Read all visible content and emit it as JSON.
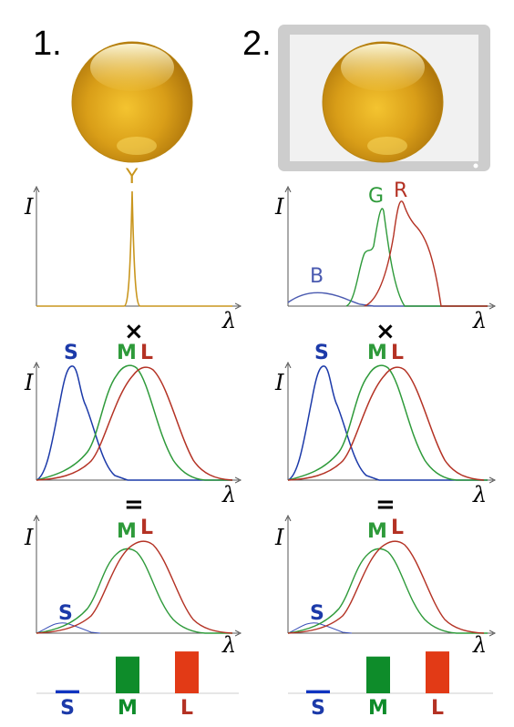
{
  "panels": [
    {
      "number": "1.",
      "source": "Y",
      "mult": "×",
      "equals": "=",
      "bar_labels": [
        "S",
        "M",
        "L"
      ],
      "cones": [
        "S",
        "M",
        "L"
      ]
    },
    {
      "number": "2.",
      "sources": [
        "B",
        "G",
        "R"
      ],
      "mult": "×",
      "equals": "=",
      "bar_labels": [
        "S",
        "M",
        "L"
      ],
      "cones": [
        "S",
        "M",
        "L"
      ]
    }
  ],
  "axes": {
    "y": "I",
    "x": "λ"
  },
  "colors": {
    "blue": "#1c3aa9",
    "green": "#2e9a3a",
    "red": "#b43224",
    "yellow": "#c9961e",
    "bar_s": "#1034c0",
    "bar_m": "#0e8c2a",
    "bar_l": "#e23a16",
    "monitor": "#cdcdcd",
    "screen": "#f1f1f1"
  },
  "chart_data": [
    {
      "type": "bar",
      "categories": [
        "S",
        "M",
        "L"
      ],
      "values": [
        0.06,
        0.72,
        0.82
      ],
      "title": "",
      "xlabel": "",
      "ylabel": ""
    },
    {
      "type": "bar",
      "categories": [
        "S",
        "M",
        "L"
      ],
      "values": [
        0.06,
        0.72,
        0.82
      ],
      "title": "",
      "xlabel": "",
      "ylabel": ""
    }
  ]
}
